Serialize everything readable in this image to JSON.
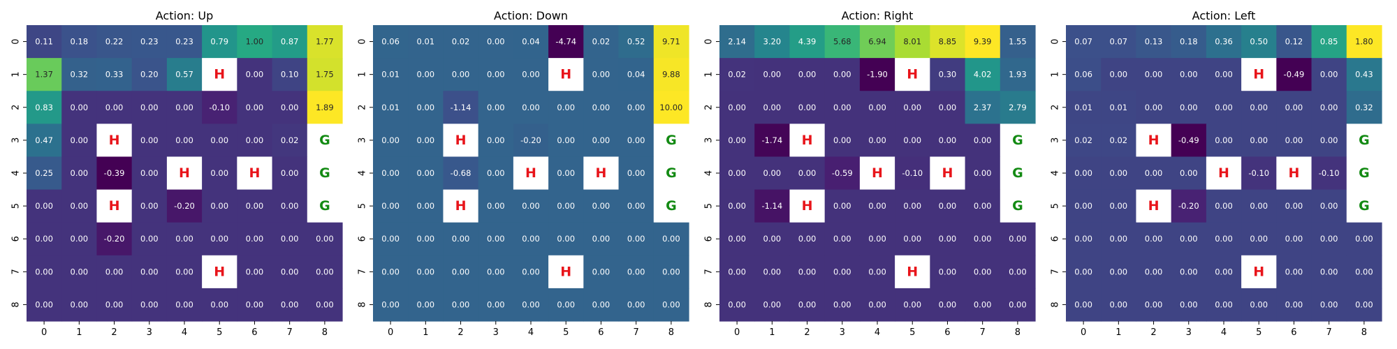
{
  "chart_data": [
    {
      "type": "heatmap",
      "title": "Action: Up",
      "x_ticks": [
        "0",
        "1",
        "2",
        "3",
        "4",
        "5",
        "6",
        "7",
        "8"
      ],
      "y_ticks": [
        "0",
        "1",
        "2",
        "3",
        "4",
        "5",
        "6",
        "7",
        "8"
      ],
      "values": [
        [
          "0.11",
          "0.18",
          "0.22",
          "0.23",
          "0.23",
          "0.79",
          "1.00",
          "0.87",
          "1.77"
        ],
        [
          "1.37",
          "0.32",
          "0.33",
          "0.20",
          "0.57",
          "H",
          "0.00",
          "0.10",
          "1.75"
        ],
        [
          "0.83",
          "0.00",
          "0.00",
          "0.00",
          "0.00",
          "-0.10",
          "0.00",
          "0.00",
          "1.89"
        ],
        [
          "0.47",
          "0.00",
          "H",
          "0.00",
          "0.00",
          "0.00",
          "0.00",
          "0.02",
          "G"
        ],
        [
          "0.25",
          "0.00",
          "-0.39",
          "0.00",
          "H",
          "0.00",
          "H",
          "0.00",
          "G"
        ],
        [
          "0.00",
          "0.00",
          "H",
          "0.00",
          "-0.20",
          "0.00",
          "0.00",
          "0.00",
          "G"
        ],
        [
          "0.00",
          "0.00",
          "-0.20",
          "0.00",
          "0.00",
          "0.00",
          "0.00",
          "0.00",
          "0.00"
        ],
        [
          "0.00",
          "0.00",
          "0.00",
          "0.00",
          "0.00",
          "H",
          "0.00",
          "0.00",
          "0.00"
        ],
        [
          "0.00",
          "0.00",
          "0.00",
          "0.00",
          "0.00",
          "0.00",
          "0.00",
          "0.00",
          "0.00"
        ]
      ]
    },
    {
      "type": "heatmap",
      "title": "Action: Down",
      "x_ticks": [
        "0",
        "1",
        "2",
        "3",
        "4",
        "5",
        "6",
        "7",
        "8"
      ],
      "y_ticks": [
        "0",
        "1",
        "2",
        "3",
        "4",
        "5",
        "6",
        "7",
        "8"
      ],
      "values": [
        [
          "0.06",
          "0.01",
          "0.02",
          "0.00",
          "0.04",
          "-4.74",
          "0.02",
          "0.52",
          "9.71"
        ],
        [
          "0.01",
          "0.00",
          "0.00",
          "0.00",
          "0.00",
          "H",
          "0.00",
          "0.04",
          "9.88"
        ],
        [
          "0.01",
          "0.00",
          "-1.14",
          "0.00",
          "0.00",
          "0.00",
          "0.00",
          "0.00",
          "10.00"
        ],
        [
          "0.00",
          "0.00",
          "H",
          "0.00",
          "-0.20",
          "0.00",
          "0.00",
          "0.00",
          "G"
        ],
        [
          "0.00",
          "0.00",
          "-0.68",
          "0.00",
          "H",
          "0.00",
          "H",
          "0.00",
          "G"
        ],
        [
          "0.00",
          "0.00",
          "H",
          "0.00",
          "0.00",
          "0.00",
          "0.00",
          "0.00",
          "G"
        ],
        [
          "0.00",
          "0.00",
          "0.00",
          "0.00",
          "0.00",
          "0.00",
          "0.00",
          "0.00",
          "0.00"
        ],
        [
          "0.00",
          "0.00",
          "0.00",
          "0.00",
          "0.00",
          "H",
          "0.00",
          "0.00",
          "0.00"
        ],
        [
          "0.00",
          "0.00",
          "0.00",
          "0.00",
          "0.00",
          "0.00",
          "0.00",
          "0.00",
          "0.00"
        ]
      ]
    },
    {
      "type": "heatmap",
      "title": "Action: Right",
      "x_ticks": [
        "0",
        "1",
        "2",
        "3",
        "4",
        "5",
        "6",
        "7",
        "8"
      ],
      "y_ticks": [
        "0",
        "1",
        "2",
        "3",
        "4",
        "5",
        "6",
        "7",
        "8"
      ],
      "values": [
        [
          "2.14",
          "3.20",
          "4.39",
          "5.68",
          "6.94",
          "8.01",
          "8.85",
          "9.39",
          "1.55"
        ],
        [
          "0.02",
          "0.00",
          "0.00",
          "0.00",
          "-1.90",
          "H",
          "0.30",
          "4.02",
          "1.93"
        ],
        [
          "0.00",
          "0.00",
          "0.00",
          "0.00",
          "0.00",
          "0.00",
          "0.00",
          "2.37",
          "2.79"
        ],
        [
          "0.00",
          "-1.74",
          "H",
          "0.00",
          "0.00",
          "0.00",
          "0.00",
          "0.00",
          "G"
        ],
        [
          "0.00",
          "0.00",
          "0.00",
          "-0.59",
          "H",
          "-0.10",
          "H",
          "0.00",
          "G"
        ],
        [
          "0.00",
          "-1.14",
          "H",
          "0.00",
          "0.00",
          "0.00",
          "0.00",
          "0.00",
          "G"
        ],
        [
          "0.00",
          "0.00",
          "0.00",
          "0.00",
          "0.00",
          "0.00",
          "0.00",
          "0.00",
          "0.00"
        ],
        [
          "0.00",
          "0.00",
          "0.00",
          "0.00",
          "0.00",
          "H",
          "0.00",
          "0.00",
          "0.00"
        ],
        [
          "0.00",
          "0.00",
          "0.00",
          "0.00",
          "0.00",
          "0.00",
          "0.00",
          "0.00",
          "0.00"
        ]
      ]
    },
    {
      "type": "heatmap",
      "title": "Action: Left",
      "x_ticks": [
        "0",
        "1",
        "2",
        "3",
        "4",
        "5",
        "6",
        "7",
        "8"
      ],
      "y_ticks": [
        "0",
        "1",
        "2",
        "3",
        "4",
        "5",
        "6",
        "7",
        "8"
      ],
      "values": [
        [
          "0.07",
          "0.07",
          "0.13",
          "0.18",
          "0.36",
          "0.50",
          "0.12",
          "0.85",
          "1.80"
        ],
        [
          "0.06",
          "0.00",
          "0.00",
          "0.00",
          "0.00",
          "H",
          "-0.49",
          "0.00",
          "0.43"
        ],
        [
          "0.01",
          "0.01",
          "0.00",
          "0.00",
          "0.00",
          "0.00",
          "0.00",
          "0.00",
          "0.32"
        ],
        [
          "0.02",
          "0.02",
          "H",
          "-0.49",
          "0.00",
          "0.00",
          "0.00",
          "0.00",
          "G"
        ],
        [
          "0.00",
          "0.00",
          "0.00",
          "0.00",
          "H",
          "-0.10",
          "H",
          "-0.10",
          "G"
        ],
        [
          "0.00",
          "0.00",
          "H",
          "-0.20",
          "0.00",
          "0.00",
          "0.00",
          "0.00",
          "G"
        ],
        [
          "0.00",
          "0.00",
          "0.00",
          "0.00",
          "0.00",
          "0.00",
          "0.00",
          "0.00",
          "0.00"
        ],
        [
          "0.00",
          "0.00",
          "0.00",
          "0.00",
          "0.00",
          "H",
          "0.00",
          "0.00",
          "0.00"
        ],
        [
          "0.00",
          "0.00",
          "0.00",
          "0.00",
          "0.00",
          "0.00",
          "0.00",
          "0.00",
          "0.00"
        ]
      ]
    }
  ],
  "colors": {
    "hole_text": "#e8141a",
    "goal_text": "#138a13",
    "special_bg": "#ffffff",
    "colormap": "viridis"
  }
}
